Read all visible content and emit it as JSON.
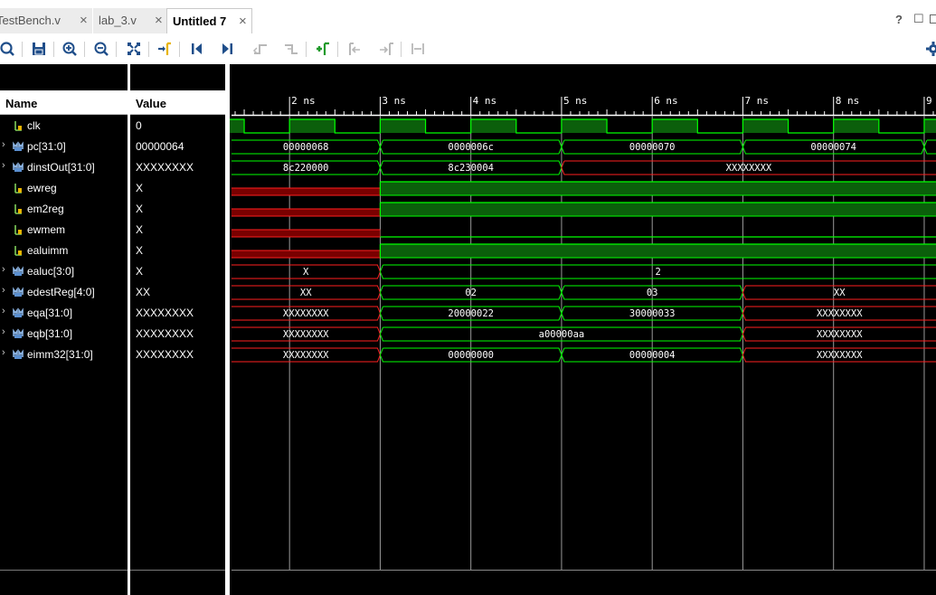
{
  "tabs": [
    {
      "label": "TestBench.v",
      "active": false
    },
    {
      "label": "lab_3.v",
      "active": false
    },
    {
      "label": "Untitled 7",
      "active": true
    }
  ],
  "window_controls": {
    "help": "?",
    "restore": "☐"
  },
  "toolbar": {
    "icons": [
      "search-icon",
      "save-icon",
      "zoom-in-icon",
      "zoom-out-icon",
      "zoom-fit-icon",
      "go-to-cursor-icon",
      "go-to-start-icon",
      "go-to-end-icon",
      "previous-transition-icon",
      "next-transition-icon",
      "add-marker-icon",
      "previous-marker-icon",
      "next-marker-icon",
      "swap-cursors-icon",
      "settings-icon"
    ]
  },
  "columns": {
    "name": "Name",
    "value": "Value"
  },
  "signals": [
    {
      "name": "clk",
      "value": "0",
      "bus": false
    },
    {
      "name": "pc[31:0]",
      "value": "00000064",
      "bus": true
    },
    {
      "name": "dinstOut[31:0]",
      "value": "XXXXXXXX",
      "bus": true
    },
    {
      "name": "ewreg",
      "value": "X",
      "bus": false
    },
    {
      "name": "em2reg",
      "value": "X",
      "bus": false
    },
    {
      "name": "ewmem",
      "value": "X",
      "bus": false
    },
    {
      "name": "ealuimm",
      "value": "X",
      "bus": false
    },
    {
      "name": "ealuc[3:0]",
      "value": "X",
      "bus": true
    },
    {
      "name": "edestReg[4:0]",
      "value": "XX",
      "bus": true
    },
    {
      "name": "eqa[31:0]",
      "value": "XXXXXXXX",
      "bus": true
    },
    {
      "name": "eqb[31:0]",
      "value": "XXXXXXXX",
      "bus": true
    },
    {
      "name": "eimm32[31:0]",
      "value": "XXXXXXXX",
      "bus": true
    }
  ],
  "timeline": {
    "view_start_ns": 1.34,
    "view_end_ns": 9.13,
    "ticks": [
      {
        "t": 2,
        "label": "2 ns"
      },
      {
        "t": 3,
        "label": "3 ns"
      },
      {
        "t": 4,
        "label": "4 ns"
      },
      {
        "t": 5,
        "label": "5 ns"
      },
      {
        "t": 6,
        "label": "6 ns"
      },
      {
        "t": 7,
        "label": "7 ns"
      },
      {
        "t": 8,
        "label": "8 ns"
      },
      {
        "t": 9,
        "label": "9"
      }
    ]
  },
  "waves": [
    {
      "type": "clock",
      "period_ns": 1,
      "high_start_ns": 1,
      "high_len_ns": 0.5
    },
    {
      "type": "bus",
      "segments": [
        {
          "start": 1,
          "end": 3,
          "label": "00000068"
        },
        {
          "start": 3,
          "end": 5,
          "label": "0000006c"
        },
        {
          "start": 5,
          "end": 7,
          "label": "00000070"
        },
        {
          "start": 7,
          "end": 9,
          "label": "00000074"
        },
        {
          "start": 9,
          "end": 10,
          "label": ""
        }
      ]
    },
    {
      "type": "bus",
      "segments": [
        {
          "start": 1,
          "end": 3,
          "label": "8c220000"
        },
        {
          "start": 3,
          "end": 5,
          "label": "8c230004"
        },
        {
          "start": 5,
          "end": 10,
          "label": "XXXXXXXX",
          "x": true
        }
      ]
    },
    {
      "type": "bit",
      "segments": [
        {
          "start": 1,
          "end": 3,
          "v": "x"
        },
        {
          "start": 3,
          "end": 10,
          "v": "1"
        }
      ]
    },
    {
      "type": "bit",
      "segments": [
        {
          "start": 1,
          "end": 3,
          "v": "x"
        },
        {
          "start": 3,
          "end": 10,
          "v": "1"
        }
      ]
    },
    {
      "type": "bit",
      "segments": [
        {
          "start": 1,
          "end": 3,
          "v": "x"
        },
        {
          "start": 3,
          "end": 10,
          "v": "0"
        }
      ]
    },
    {
      "type": "bit",
      "segments": [
        {
          "start": 1,
          "end": 3,
          "v": "x"
        },
        {
          "start": 3,
          "end": 10,
          "v": "1"
        }
      ]
    },
    {
      "type": "bus",
      "segments": [
        {
          "start": 1,
          "end": 3,
          "label": "X",
          "x": true
        },
        {
          "start": 3,
          "end": 10,
          "label": "2"
        }
      ]
    },
    {
      "type": "bus",
      "segments": [
        {
          "start": 1,
          "end": 3,
          "label": "XX",
          "x": true
        },
        {
          "start": 3,
          "end": 5,
          "label": "02"
        },
        {
          "start": 5,
          "end": 7,
          "label": "03"
        },
        {
          "start": 7,
          "end": 10,
          "label": "XX",
          "x": true
        }
      ]
    },
    {
      "type": "bus",
      "segments": [
        {
          "start": 1,
          "end": 3,
          "label": "XXXXXXXX",
          "x": true
        },
        {
          "start": 3,
          "end": 5,
          "label": "20000022"
        },
        {
          "start": 5,
          "end": 7,
          "label": "30000033"
        },
        {
          "start": 7,
          "end": 10,
          "label": "XXXXXXXX",
          "x": true
        }
      ]
    },
    {
      "type": "bus",
      "segments": [
        {
          "start": 1,
          "end": 3,
          "label": "XXXXXXXX",
          "x": true
        },
        {
          "start": 3,
          "end": 7,
          "label": "a00000aa"
        },
        {
          "start": 7,
          "end": 10,
          "label": "XXXXXXXX",
          "x": true
        }
      ]
    },
    {
      "type": "bus",
      "segments": [
        {
          "start": 1,
          "end": 3,
          "label": "XXXXXXXX",
          "x": true
        },
        {
          "start": 3,
          "end": 5,
          "label": "00000000"
        },
        {
          "start": 5,
          "end": 7,
          "label": "00000004"
        },
        {
          "start": 7,
          "end": 10,
          "label": "XXXXXXXX",
          "x": true
        }
      ]
    }
  ],
  "colors": {
    "wave_green": "#00ff00",
    "wave_fill": "#0b5f0b",
    "wave_red": "#ff2020",
    "x_fill": "#7a0000",
    "grid": "#9a9a9a",
    "text": "#ffffff"
  }
}
